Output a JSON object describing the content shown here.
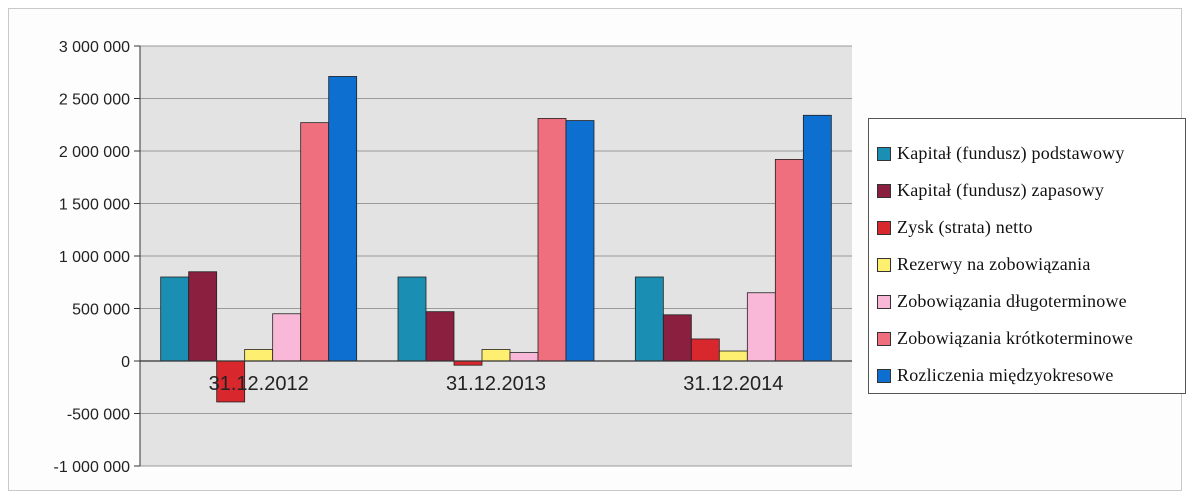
{
  "chart_data": {
    "type": "bar",
    "title": "",
    "xlabel": "",
    "ylabel": "",
    "ylim": [
      -1000000,
      3000000
    ],
    "yticks": [
      3000000,
      2500000,
      2000000,
      1500000,
      1000000,
      500000,
      0,
      -500000,
      -1000000
    ],
    "ytick_labels": [
      "3 000 000",
      "2 500 000",
      "2 000 000",
      "1 500 000",
      "1 000 000",
      "500 000",
      "0",
      "-500 000",
      "-1 000 000"
    ],
    "categories": [
      "31.12.2012",
      "31.12.2013",
      "31.12.2014"
    ],
    "series": [
      {
        "name": "Kapitał (fundusz) podstawowy",
        "color": "#1a8fb3",
        "values": [
          800000,
          800000,
          800000
        ]
      },
      {
        "name": "Kapitał (fundusz) zapasowy",
        "color": "#8a1f3f",
        "values": [
          850000,
          470000,
          440000
        ]
      },
      {
        "name": "Zysk (strata) netto",
        "color": "#d9272e",
        "values": [
          -390000,
          -40000,
          210000
        ]
      },
      {
        "name": "Rezerwy na zobowiązania",
        "color": "#ffef70",
        "values": [
          110000,
          110000,
          95000
        ]
      },
      {
        "name": "Zobowiązania długoterminowe",
        "color": "#f9b8d8",
        "values": [
          450000,
          80000,
          650000
        ]
      },
      {
        "name": "Zobowiązania krótkoterminowe",
        "color": "#ef6f7f",
        "values": [
          2270000,
          2310000,
          1920000
        ]
      },
      {
        "name": "Rozliczenia międzyokresowe",
        "color": "#0d6fd0",
        "values": [
          2710000,
          2290000,
          2340000
        ]
      }
    ],
    "legend_position": "right",
    "grid": true,
    "plot_background": "#e3e3e3",
    "grid_color": "#9a9a9a"
  }
}
